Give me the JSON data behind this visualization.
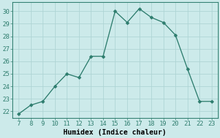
{
  "x": [
    7,
    8,
    9,
    10,
    11,
    12,
    13,
    14,
    15,
    16,
    17,
    18,
    19,
    20,
    21,
    22,
    23
  ],
  "y": [
    21.8,
    22.5,
    22.8,
    24.0,
    25.0,
    24.7,
    26.4,
    26.4,
    30.0,
    29.1,
    30.2,
    29.5,
    29.1,
    28.1,
    25.4,
    22.8,
    22.8
  ],
  "xlabel": "Humidex (Indice chaleur)",
  "xlim": [
    6.5,
    23.5
  ],
  "ylim": [
    21.5,
    30.7
  ],
  "yticks": [
    22,
    23,
    24,
    25,
    26,
    27,
    28,
    29,
    30
  ],
  "xticks": [
    7,
    8,
    9,
    10,
    11,
    12,
    13,
    14,
    15,
    16,
    17,
    18,
    19,
    20,
    21,
    22,
    23
  ],
  "line_color": "#2e7d6e",
  "bg_color": "#cceaea",
  "grid_color": "#aed4d4",
  "marker": "D",
  "marker_size": 2.5,
  "tick_fontsize": 6.5,
  "xlabel_fontsize": 7.5,
  "linewidth": 1.0
}
